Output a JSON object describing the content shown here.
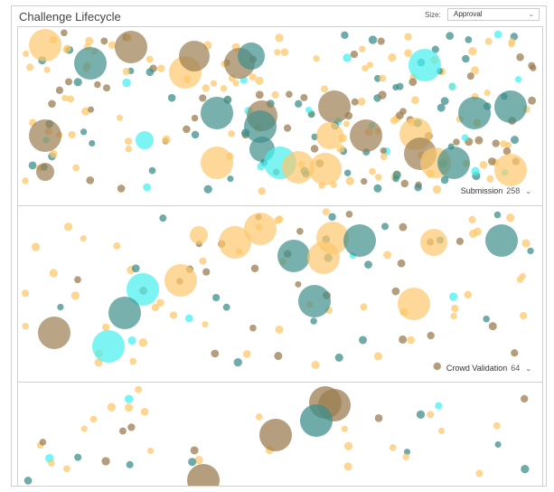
{
  "header": {
    "title": "Challenge Lifecycle",
    "size_label": "Size:",
    "size_value": "Approval"
  },
  "colors": {
    "gold": "#9b7e52",
    "orange": "#fcc86c",
    "teal": "#3e8f8c",
    "cyan": "#46f0f0"
  },
  "stages": [
    {
      "name": "Submission",
      "count": "258"
    },
    {
      "name": "Crowd Validation",
      "count": "64"
    },
    {
      "name": "",
      "count": ""
    }
  ]
}
